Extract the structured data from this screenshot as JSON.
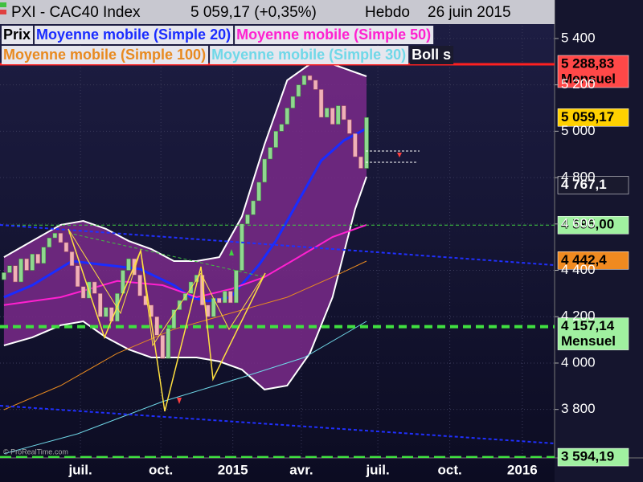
{
  "chart_data": {
    "type": "candlestick",
    "header": {
      "title": "PXI - CAC40 Index",
      "price": "5 059,17 (+0,35%)",
      "period": "Hebdo",
      "date": "26 juin 2015"
    },
    "watermark": "© ProRealTime.com",
    "candles": {
      "name": "Prix",
      "up_color": "#8fd88f",
      "down_color": "#f0b0b8",
      "open": [
        4360,
        4390,
        4420,
        4350,
        4450,
        4400,
        4470,
        4430,
        4500,
        4540,
        4560,
        4520,
        4480,
        4420,
        4330,
        4280,
        4350,
        4300,
        4200,
        4240,
        4180,
        4300,
        4400,
        4450,
        4380,
        4290,
        4250,
        4200,
        4120,
        4020,
        4150,
        4230,
        4270,
        4300,
        4350,
        4380,
        4250,
        4200,
        4280,
        4260,
        4310,
        4260,
        4400,
        4600,
        4640,
        4700,
        4780,
        4880,
        4930,
        5000,
        5030,
        5100,
        5150,
        5200,
        5240,
        5220,
        5180,
        5060,
        5100,
        5030,
        5110,
        5050,
        4990,
        4890,
        4840
      ],
      "close": [
        4390,
        4420,
        4350,
        4450,
        4400,
        4470,
        4430,
        4500,
        4540,
        4560,
        4520,
        4480,
        4420,
        4330,
        4280,
        4350,
        4300,
        4200,
        4240,
        4180,
        4300,
        4400,
        4450,
        4380,
        4290,
        4250,
        4200,
        4120,
        4020,
        4150,
        4230,
        4270,
        4300,
        4350,
        4380,
        4250,
        4200,
        4280,
        4260,
        4310,
        4260,
        4400,
        4600,
        4640,
        4700,
        4780,
        4880,
        4930,
        5000,
        5030,
        5100,
        5150,
        5200,
        5240,
        5220,
        5180,
        5060,
        5100,
        5030,
        5110,
        5050,
        4990,
        4890,
        4840,
        5059.17
      ]
    },
    "bands": {
      "name": "Boll s",
      "color": "#ffffff",
      "fill": "#7a2a8a",
      "x": [
        0,
        5,
        10,
        14,
        18,
        22,
        26,
        30,
        34,
        38,
        42,
        46,
        50,
        54,
        58,
        62,
        64
      ],
      "upper": [
        4457,
        4527,
        4596,
        4613,
        4579,
        4527,
        4492,
        4440,
        4440,
        4457,
        4631,
        4943,
        5220,
        5289,
        5289,
        5254,
        5237
      ],
      "lower": [
        4076,
        4111,
        4163,
        4180,
        4111,
        4059,
        4024,
        4024,
        4024,
        4007,
        3972,
        3886,
        3903,
        4042,
        4284,
        4665,
        4804
      ]
    },
    "series": [
      {
        "name": "Moyenne mobile (Simple 20)",
        "color": "#1a2cff",
        "width": 3,
        "x": [
          0,
          5,
          12,
          18,
          24,
          30,
          33,
          36,
          40,
          45,
          48,
          52,
          56,
          60,
          64
        ],
        "values": [
          4284,
          4336,
          4440,
          4423,
          4406,
          4336,
          4284,
          4267,
          4284,
          4423,
          4527,
          4700,
          4873,
          4960,
          5012
        ]
      },
      {
        "name": "Moyenne mobile (Simple 50)",
        "color": "#ff20d0",
        "width": 2,
        "x": [
          0,
          10,
          20,
          28,
          34,
          40,
          46,
          52,
          58,
          64
        ],
        "values": [
          4250,
          4284,
          4354,
          4336,
          4284,
          4319,
          4371,
          4457,
          4544,
          4596
        ]
      },
      {
        "name": "Moyenne mobile (Simple 100)",
        "color": "#e88a20",
        "width": 1,
        "x": [
          0,
          10,
          20,
          30,
          40,
          50,
          58,
          64
        ],
        "values": [
          3799,
          3903,
          4042,
          4146,
          4215,
          4284,
          4371,
          4440
        ]
      },
      {
        "name": "Moyenne mobile (Simple 30)",
        "color": "#70d8e8",
        "width": 1,
        "x": [
          0,
          13,
          28,
          42,
          53,
          64
        ],
        "values": [
          3609,
          3695,
          3834,
          3938,
          4024,
          4180
        ]
      }
    ],
    "hlines": [
      {
        "value": 5288.83,
        "color": "#ff2020",
        "width": 3,
        "dash": ""
      },
      {
        "value": 4595,
        "color": "#40d040",
        "width": 1,
        "dash": "4 3"
      },
      {
        "value": 4157.14,
        "color": "#40e040",
        "width": 4,
        "dash": "10 6"
      },
      {
        "value": 3594.19,
        "color": "#40e040",
        "width": 3,
        "dash": "14 6"
      }
    ],
    "price_tags": [
      {
        "value": 5288.83,
        "label": "5 288,83",
        "sub": "Mensuel",
        "bg": "#ff4848",
        "fg": "#000000"
      },
      {
        "value": 5059.17,
        "label": "5 059,17",
        "bg": "#ffd000",
        "fg": "#000000"
      },
      {
        "value": 4767.1,
        "label": "4 767,1",
        "bg": "#1a1a2e",
        "fg": "#ffffff"
      },
      {
        "value": 4595,
        "label": "4 595,00",
        "bg": "#a0f0a0",
        "fg": "#000000"
      },
      {
        "value": 4442.4,
        "label": "4 442,4",
        "bg": "#f08a20",
        "fg": "#000000"
      },
      {
        "value": 4157.14,
        "label": "4 157,14",
        "sub": "Mensuel",
        "bg": "#a0f0a0",
        "fg": "#000000"
      },
      {
        "value": 3594.19,
        "label": "3 594,19",
        "bg": "#a0f0a0",
        "fg": "#000000"
      }
    ],
    "ylim": [
      3591,
      5566
    ],
    "yticks": [
      {
        "value": 3800,
        "label": "3 800"
      },
      {
        "value": 4000,
        "label": "4 000"
      },
      {
        "value": 4200,
        "label": "4 200"
      },
      {
        "value": 4400,
        "label": "4 400"
      },
      {
        "value": 4600,
        "label": "4 600"
      },
      {
        "value": 4800,
        "label": "4 800"
      },
      {
        "value": 5000,
        "label": "5 000"
      },
      {
        "value": 5200,
        "label": "5 200"
      },
      {
        "value": 5400,
        "label": "5 400"
      }
    ],
    "xlim": [
      -0.7,
      97.2
    ],
    "xticks": [
      {
        "value": 13.5,
        "label": "juil."
      },
      {
        "value": 27.7,
        "label": "oct."
      },
      {
        "value": 40.4,
        "label": "2015"
      },
      {
        "value": 52.5,
        "label": "avr."
      },
      {
        "value": 66,
        "label": "juil."
      },
      {
        "value": 78.7,
        "label": "oct."
      },
      {
        "value": 91.5,
        "label": "2016"
      }
    ],
    "grid": true
  }
}
